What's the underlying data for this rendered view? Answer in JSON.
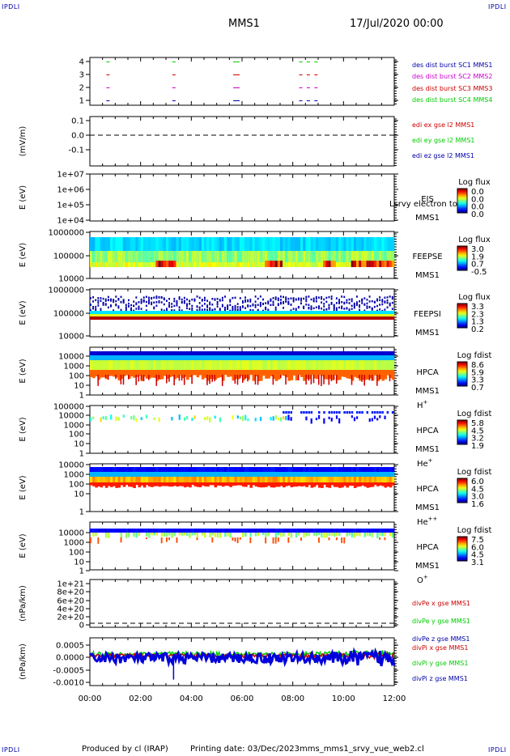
{
  "corner_labels": {
    "tl": "IPDLI",
    "tr": "IPDLI",
    "bl": "IPDLI",
    "br": "IPDLI"
  },
  "header": {
    "spacecraft": "MMS1",
    "datetime": "17/Jul/2020 00:00"
  },
  "footer": {
    "producer": "Produced by cl (IRAP)",
    "printing": "Printing date: 03/Dec/2023",
    "script": "mms_mms1_srvy_vue_web2.cl"
  },
  "chart_data": [
    {
      "id": "burst",
      "type": "scatter",
      "ylabel": "",
      "yticks": [
        "1",
        "2",
        "3",
        "4"
      ],
      "ylim": [
        0.5,
        4.5
      ],
      "segments_hours": [
        0.65,
        3.25,
        5.65,
        8.25,
        8.55,
        8.85
      ],
      "series": [
        {
          "name": "des dist burst SC1 MMS1",
          "y": 1,
          "color": "#0000aa"
        },
        {
          "name": "des dist burst SC2 MMS2",
          "y": 2,
          "color": "#cc00cc"
        },
        {
          "name": "des dist burst SC3 MMS3",
          "y": 3,
          "color": "#cc0000"
        },
        {
          "name": "des dist burst SC4 MMS4",
          "y": 4,
          "color": "#00cc00"
        }
      ]
    },
    {
      "id": "edi",
      "type": "line",
      "ylabel": "(mV/m)",
      "yticks": [
        "0.1",
        "0.0",
        "-0.1"
      ],
      "ylim": [
        -0.2,
        0.15
      ],
      "series": [
        {
          "name": "edi ex gse l2 MMS1",
          "color": "#cc0000"
        },
        {
          "name": "edi ey gse l2 MMS1",
          "color": "#00cc00"
        },
        {
          "name": "edi ez gse l2 MMS1",
          "color": "#0000aa"
        }
      ]
    },
    {
      "id": "eis",
      "type": "heatmap",
      "ylabel": "E (eV)",
      "yticks": [
        "1e+07",
        "1e+06",
        "1e+05",
        "1e+04"
      ],
      "instrument": "EIS",
      "spacecraft": "MMS1",
      "overlay": "Lsrvy electron to",
      "colorbar": {
        "title": "Log flux",
        "ticks": [
          "0.0",
          "0.0",
          "0.0",
          "0.0"
        ]
      }
    },
    {
      "id": "feepse",
      "type": "heatmap",
      "ylabel": "E (eV)",
      "yticks": [
        "1000000",
        "100000",
        "10000"
      ],
      "instrument": "FEEPSE",
      "spacecraft": "MMS1",
      "colorbar": {
        "title": "Log flux",
        "ticks": [
          "3.0",
          "1.9",
          "0.7",
          "-0.5"
        ]
      }
    },
    {
      "id": "feepsi",
      "type": "heatmap",
      "ylabel": "E (eV)",
      "yticks": [
        "1000000",
        "100000",
        "10000"
      ],
      "instrument": "FEEPSI",
      "spacecraft": "MMS1",
      "colorbar": {
        "title": "Log flux",
        "ticks": [
          "3.3",
          "2.3",
          "1.3",
          "0.2"
        ]
      }
    },
    {
      "id": "hpca_h",
      "type": "heatmap",
      "ylabel": "E (eV)",
      "yticks": [
        "10000",
        "1000",
        "100",
        "10",
        "1"
      ],
      "instrument": "HPCA",
      "spacecraft": "MMS1",
      "species": "H",
      "charge": "+",
      "colorbar": {
        "title": "Log fdist",
        "ticks": [
          "8.6",
          "5.9",
          "3.3",
          "0.7"
        ]
      }
    },
    {
      "id": "hpca_he1",
      "type": "heatmap",
      "ylabel": "E (eV)",
      "yticks": [
        "100000",
        "10000",
        "1000",
        "100",
        "10",
        "1"
      ],
      "instrument": "HPCA",
      "spacecraft": "MMS1",
      "species": "He",
      "charge": "+",
      "colorbar": {
        "title": "Log fdist",
        "ticks": [
          "5.8",
          "4.5",
          "3.2",
          "1.9"
        ]
      }
    },
    {
      "id": "hpca_he2",
      "type": "heatmap",
      "ylabel": "E (eV)",
      "yticks": [
        "10000",
        "1000",
        "100",
        "10",
        "1"
      ],
      "instrument": "HPCA",
      "spacecraft": "MMS1",
      "species": "He",
      "charge": "++",
      "colorbar": {
        "title": "Log fdist",
        "ticks": [
          "6.0",
          "4.5",
          "3.0",
          "1.6"
        ]
      }
    },
    {
      "id": "hpca_o",
      "type": "heatmap",
      "ylabel": "E (eV)",
      "yticks": [
        "10000",
        "1000",
        "100",
        "10",
        "1"
      ],
      "instrument": "HPCA",
      "spacecraft": "MMS1",
      "species": "O",
      "charge": "+",
      "colorbar": {
        "title": "Log fdist",
        "ticks": [
          "7.5",
          "6.0",
          "4.5",
          "3.1"
        ]
      }
    },
    {
      "id": "divpe",
      "type": "line",
      "ylabel": "(nPa/km)",
      "yticks": [
        "1e+21",
        "8e+20",
        "6e+20",
        "4e+20",
        "2e+20",
        "0"
      ],
      "ylim": [
        -6e+19,
        1.05e+21
      ],
      "series": [
        {
          "name": "divPe x gse MMS1",
          "color": "#cc0000"
        },
        {
          "name": "divPe y gse MMS1",
          "color": "#00cc00"
        },
        {
          "name": "divPe z gse MMS1",
          "color": "#0000aa"
        }
      ]
    },
    {
      "id": "divpi",
      "type": "line",
      "ylabel": "(nPa/km)",
      "yticks": [
        "0.0005",
        "0.0000",
        "-0.0005",
        "-0.0010"
      ],
      "ylim": [
        -0.0012,
        0.0008
      ],
      "series": [
        {
          "name": "divPi x gse MMS1",
          "color": "#cc0000"
        },
        {
          "name": "divPi y gse MMS1",
          "color": "#00cc00"
        },
        {
          "name": "divPi z gse MMS1",
          "color": "#0000aa"
        }
      ]
    }
  ],
  "xaxis": {
    "range_hours": [
      0,
      12
    ],
    "ticks": [
      "00:00",
      "02:00",
      "04:00",
      "06:00",
      "08:00",
      "10:00",
      "12:00"
    ]
  }
}
